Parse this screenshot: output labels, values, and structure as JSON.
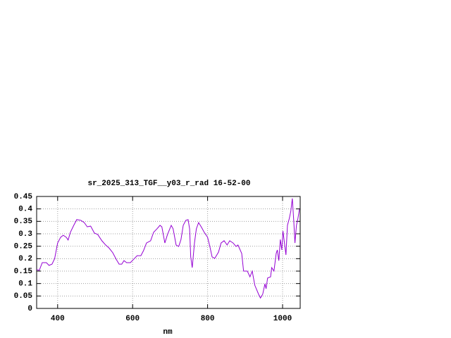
{
  "chart_data": {
    "type": "line",
    "title": "sr_2025_313_TGF__y03_r_rad 16-52-00",
    "xlabel": "nm",
    "xlim": [
      344,
      1047
    ],
    "ylim": [
      0,
      0.45
    ],
    "xticks": [
      400,
      600,
      800,
      1000
    ],
    "yticks": [
      0,
      0.05,
      0.1,
      0.15,
      0.2,
      0.25,
      0.3,
      0.35,
      0.4,
      0.45
    ],
    "grid": true,
    "x": [
      344,
      351,
      359,
      370,
      377,
      385,
      392,
      400,
      408,
      415,
      423,
      428,
      434,
      443,
      451,
      462,
      471,
      479,
      488,
      498,
      507,
      518,
      528,
      537,
      547,
      556,
      564,
      571,
      577,
      584,
      594,
      603,
      612,
      622,
      629,
      637,
      648,
      656,
      665,
      673,
      678,
      686,
      693,
      703,
      708,
      716,
      723,
      729,
      735,
      742,
      748,
      752,
      755,
      759,
      765,
      770,
      776,
      783,
      791,
      800,
      806,
      812,
      819,
      829,
      836,
      844,
      852,
      859,
      868,
      876,
      881,
      891,
      896,
      906,
      913,
      919,
      926,
      936,
      941,
      947,
      953,
      956,
      960,
      968,
      971,
      977,
      983,
      986,
      990,
      994,
      998,
      1001,
      1005,
      1009,
      1013,
      1018,
      1022,
      1026,
      1030,
      1033,
      1037,
      1041,
      1045
    ],
    "series": [
      {
        "color": "#9400d3",
        "values": [
          0.156,
          0.153,
          0.184,
          0.184,
          0.173,
          0.178,
          0.2,
          0.263,
          0.286,
          0.294,
          0.286,
          0.275,
          0.306,
          0.334,
          0.357,
          0.354,
          0.345,
          0.328,
          0.331,
          0.303,
          0.297,
          0.272,
          0.255,
          0.243,
          0.224,
          0.198,
          0.178,
          0.178,
          0.192,
          0.184,
          0.184,
          0.198,
          0.212,
          0.212,
          0.232,
          0.263,
          0.272,
          0.306,
          0.32,
          0.334,
          0.328,
          0.263,
          0.297,
          0.334,
          0.32,
          0.255,
          0.249,
          0.277,
          0.334,
          0.354,
          0.357,
          0.32,
          0.207,
          0.164,
          0.263,
          0.32,
          0.345,
          0.328,
          0.306,
          0.286,
          0.249,
          0.207,
          0.201,
          0.226,
          0.263,
          0.272,
          0.255,
          0.272,
          0.263,
          0.249,
          0.255,
          0.221,
          0.15,
          0.15,
          0.127,
          0.15,
          0.093,
          0.057,
          0.042,
          0.057,
          0.099,
          0.079,
          0.122,
          0.127,
          0.164,
          0.15,
          0.221,
          0.235,
          0.192,
          0.277,
          0.235,
          0.311,
          0.263,
          0.215,
          0.334,
          0.362,
          0.391,
          0.442,
          0.348,
          0.263,
          0.334,
          0.362,
          0.399
        ]
      }
    ]
  }
}
